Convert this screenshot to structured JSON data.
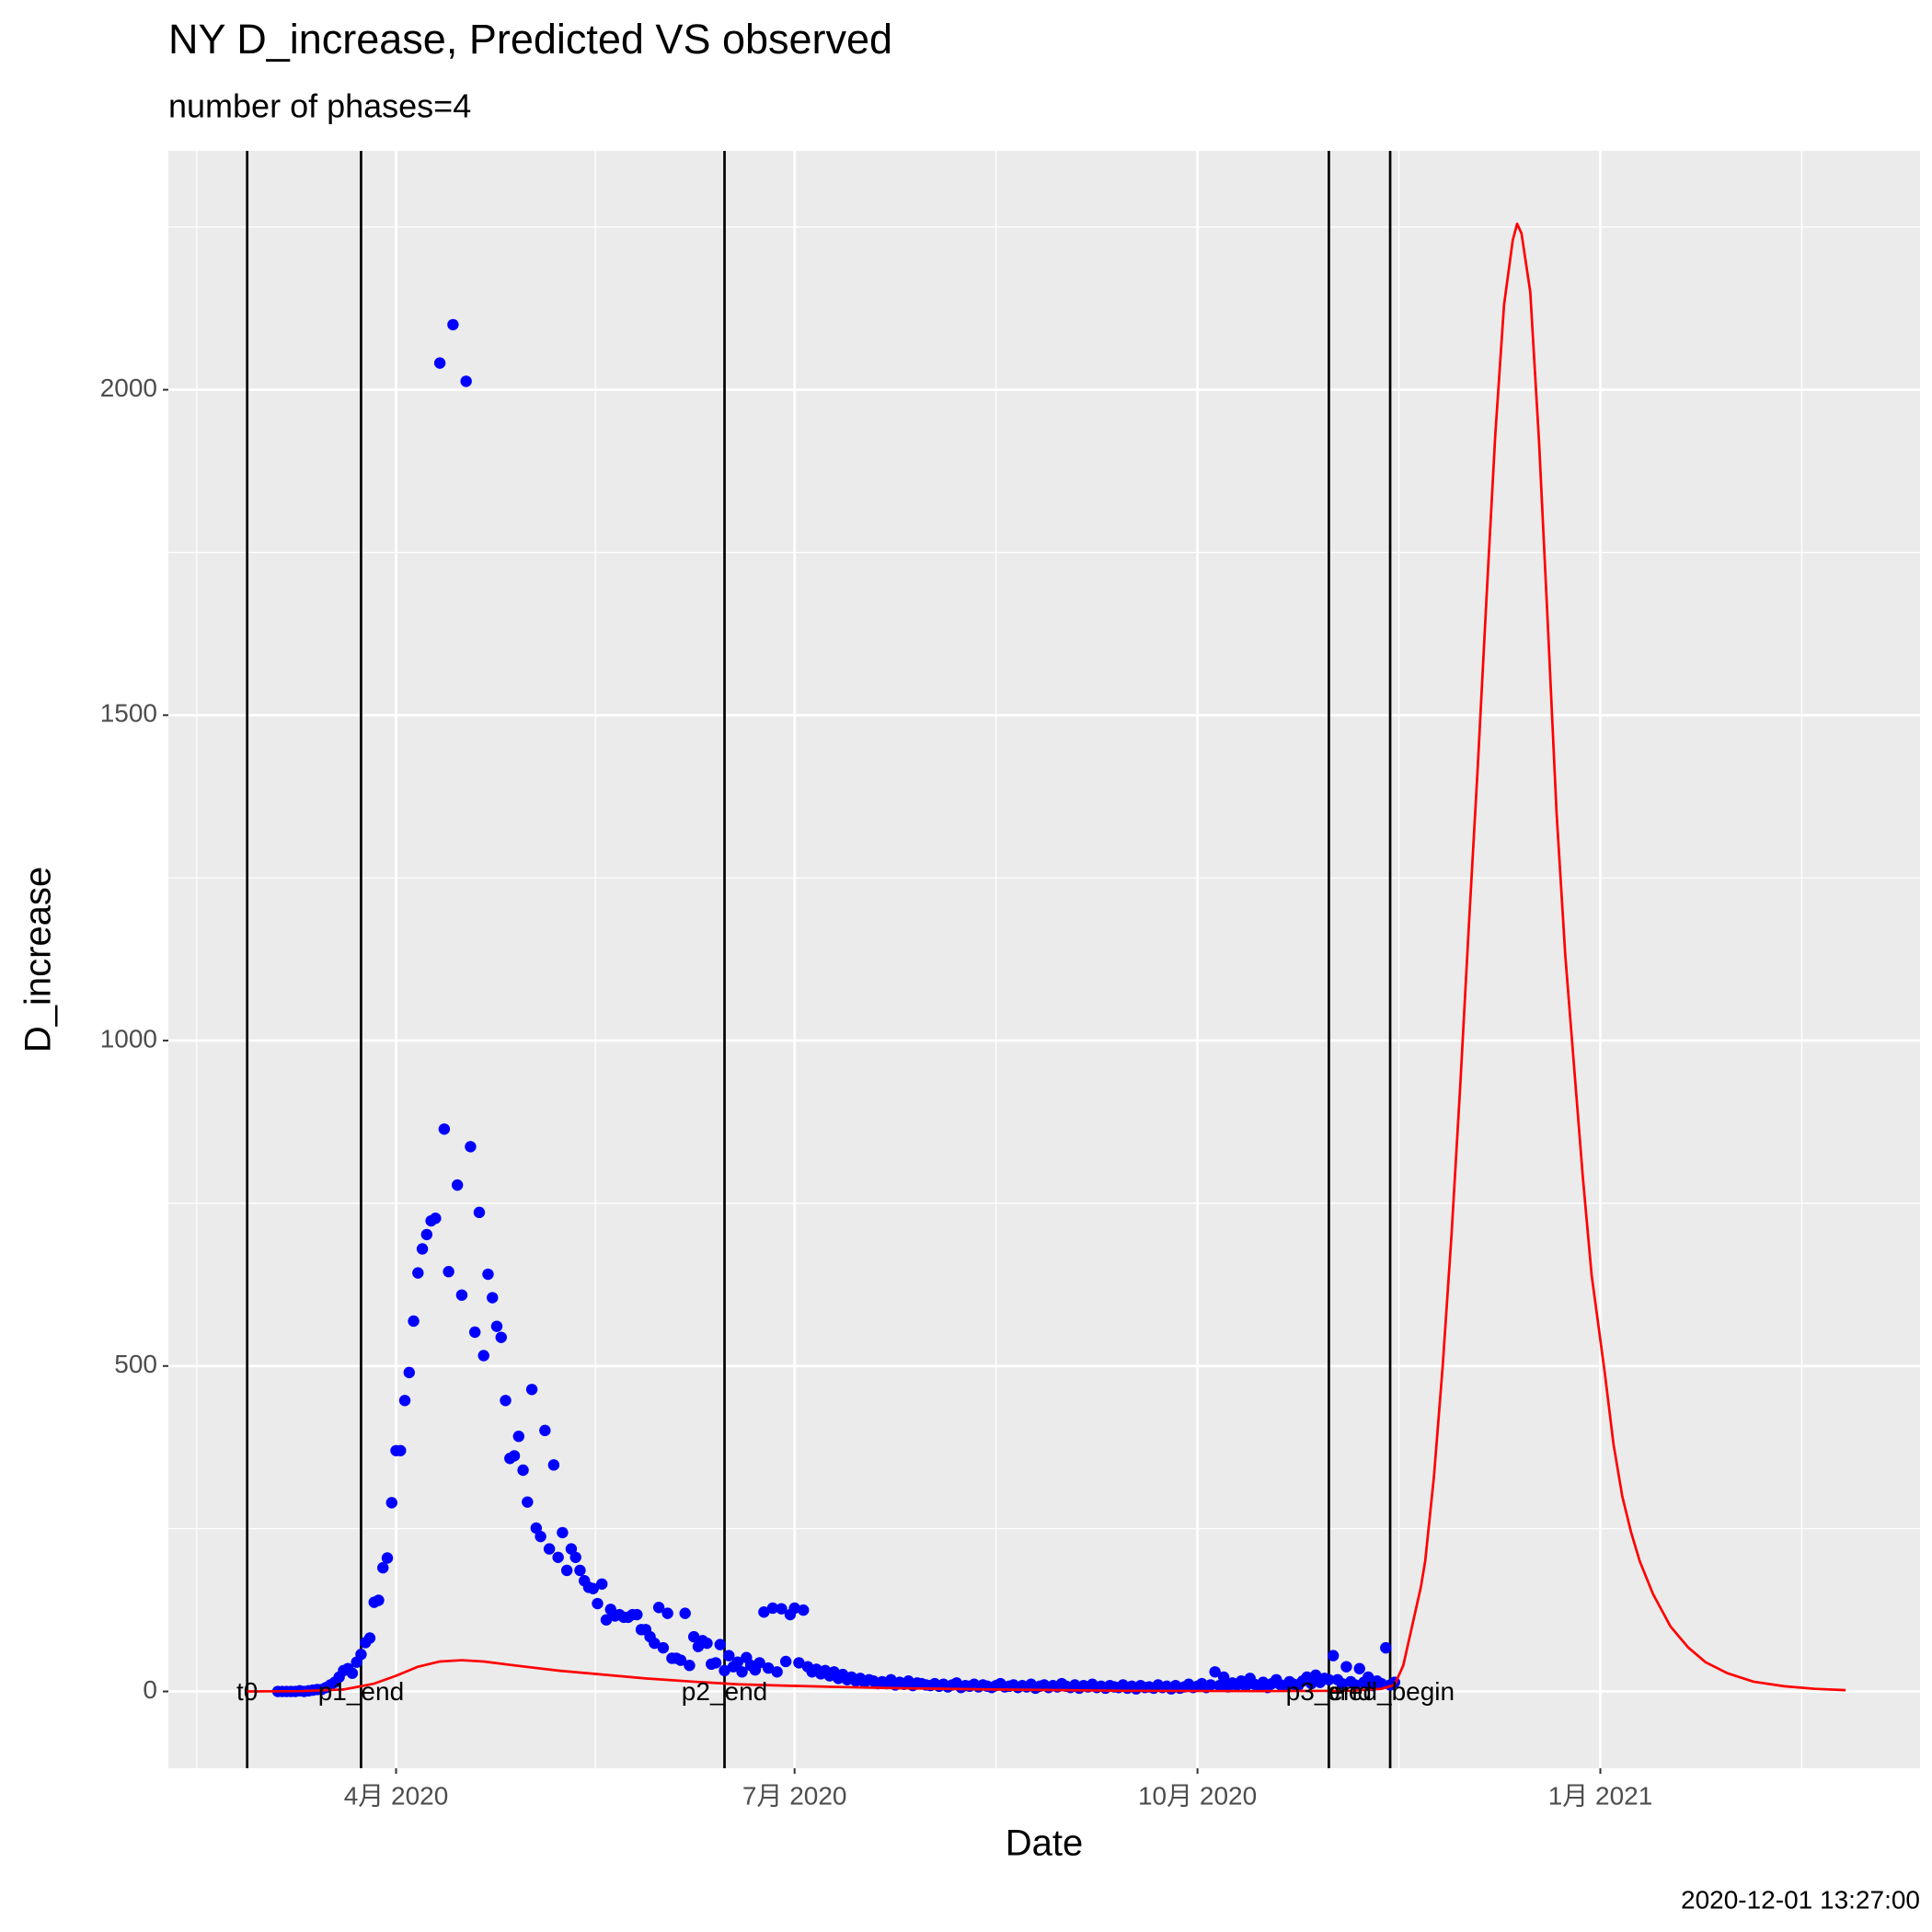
{
  "chart_data": {
    "type": "scatter",
    "title": "NY D_increase, Predicted VS observed",
    "subtitle": "number of phases=4",
    "x_label": "Date",
    "y_label": "D_increase",
    "caption": "2020-12-01 13:27:00",
    "xlim": [
      "2020-02-09",
      "2021-03-15"
    ],
    "ylim": [
      -118,
      2367
    ],
    "xticks": [
      {
        "value": "2020-04-01",
        "label": "4月 2020"
      },
      {
        "value": "2020-07-01",
        "label": "7月 2020"
      },
      {
        "value": "2020-10-01",
        "label": "10月 2020"
      },
      {
        "value": "2021-01-01",
        "label": "1月 2021"
      }
    ],
    "yticks": [
      0,
      500,
      1000,
      1500,
      2000
    ],
    "grid": true,
    "phase_line_color": "black",
    "phase_lines": [
      {
        "label": "t0",
        "x": "2020-02-27"
      },
      {
        "label": "p1_end",
        "x": "2020-03-24"
      },
      {
        "label": "p2_end",
        "x": "2020-06-15"
      },
      {
        "label": "p3_end",
        "x": "2020-10-31"
      },
      {
        "label": "pred_begin",
        "x": "2020-11-14"
      }
    ],
    "series": [
      {
        "type": "scatter",
        "color": "blue",
        "x": [
          "2020-03-05",
          "2020-03-06",
          "2020-03-07",
          "2020-03-08",
          "2020-03-09",
          "2020-03-10",
          "2020-03-11",
          "2020-03-12",
          "2020-03-13",
          "2020-03-14",
          "2020-03-15",
          "2020-03-16",
          "2020-03-17",
          "2020-03-18",
          "2020-03-19",
          "2020-03-20",
          "2020-03-21",
          "2020-03-22",
          "2020-03-23",
          "2020-03-24",
          "2020-03-25",
          "2020-03-26",
          "2020-03-27",
          "2020-03-28",
          "2020-03-29",
          "2020-03-30",
          "2020-03-31",
          "2020-04-01",
          "2020-04-02",
          "2020-04-03",
          "2020-04-04",
          "2020-04-05",
          "2020-04-06",
          "2020-04-07",
          "2020-04-08",
          "2020-04-09",
          "2020-04-10",
          "2020-04-11",
          "2020-04-12",
          "2020-04-13",
          "2020-04-14",
          "2020-04-15",
          "2020-04-16",
          "2020-04-17",
          "2020-04-18",
          "2020-04-19",
          "2020-04-20",
          "2020-04-21",
          "2020-04-22",
          "2020-04-23",
          "2020-04-24",
          "2020-04-25",
          "2020-04-26",
          "2020-04-27",
          "2020-04-28",
          "2020-04-29",
          "2020-04-30",
          "2020-05-01",
          "2020-05-02",
          "2020-05-03",
          "2020-05-04",
          "2020-05-05",
          "2020-05-06",
          "2020-05-07",
          "2020-05-08",
          "2020-05-09",
          "2020-05-10",
          "2020-05-11",
          "2020-05-12",
          "2020-05-13",
          "2020-05-14",
          "2020-05-15",
          "2020-05-16",
          "2020-05-17",
          "2020-05-18",
          "2020-05-19",
          "2020-05-20",
          "2020-05-21",
          "2020-05-22",
          "2020-05-23",
          "2020-05-24",
          "2020-05-25",
          "2020-05-26",
          "2020-05-27",
          "2020-05-28",
          "2020-05-29",
          "2020-05-30",
          "2020-05-31",
          "2020-06-01",
          "2020-06-02",
          "2020-06-03",
          "2020-06-04",
          "2020-06-05",
          "2020-06-06",
          "2020-06-07",
          "2020-06-08",
          "2020-06-09",
          "2020-06-10",
          "2020-06-11",
          "2020-06-12",
          "2020-06-13",
          "2020-06-14",
          "2020-06-15",
          "2020-06-16",
          "2020-06-17",
          "2020-06-18",
          "2020-06-19",
          "2020-06-20",
          "2020-06-21",
          "2020-06-22",
          "2020-06-23",
          "2020-06-24",
          "2020-06-25",
          "2020-06-26",
          "2020-06-27",
          "2020-06-28",
          "2020-06-29",
          "2020-06-30",
          "2020-07-01",
          "2020-07-02",
          "2020-07-03",
          "2020-07-04",
          "2020-07-05",
          "2020-07-06",
          "2020-07-07",
          "2020-07-08",
          "2020-07-09",
          "2020-07-10",
          "2020-07-11",
          "2020-07-12",
          "2020-07-13",
          "2020-07-14",
          "2020-07-15",
          "2020-07-16",
          "2020-07-17",
          "2020-07-18",
          "2020-07-19",
          "2020-07-20",
          "2020-07-21",
          "2020-07-22",
          "2020-07-23",
          "2020-07-24",
          "2020-07-25",
          "2020-07-26",
          "2020-07-27",
          "2020-07-28",
          "2020-07-29",
          "2020-07-30",
          "2020-07-31",
          "2020-08-01",
          "2020-08-02",
          "2020-08-03",
          "2020-08-04",
          "2020-08-05",
          "2020-08-06",
          "2020-08-07",
          "2020-08-08",
          "2020-08-09",
          "2020-08-10",
          "2020-08-11",
          "2020-08-12",
          "2020-08-13",
          "2020-08-14",
          "2020-08-15",
          "2020-08-16",
          "2020-08-17",
          "2020-08-18",
          "2020-08-19",
          "2020-08-20",
          "2020-08-21",
          "2020-08-22",
          "2020-08-23",
          "2020-08-24",
          "2020-08-25",
          "2020-08-26",
          "2020-08-27",
          "2020-08-28",
          "2020-08-29",
          "2020-08-30",
          "2020-08-31",
          "2020-09-01",
          "2020-09-02",
          "2020-09-03",
          "2020-09-04",
          "2020-09-05",
          "2020-09-06",
          "2020-09-07",
          "2020-09-08",
          "2020-09-09",
          "2020-09-10",
          "2020-09-11",
          "2020-09-12",
          "2020-09-13",
          "2020-09-14",
          "2020-09-15",
          "2020-09-16",
          "2020-09-17",
          "2020-09-18",
          "2020-09-19",
          "2020-09-20",
          "2020-09-21",
          "2020-09-22",
          "2020-09-23",
          "2020-09-24",
          "2020-09-25",
          "2020-09-26",
          "2020-09-27",
          "2020-09-28",
          "2020-09-29",
          "2020-09-30",
          "2020-10-01",
          "2020-10-02",
          "2020-10-03",
          "2020-10-04",
          "2020-10-05",
          "2020-10-06",
          "2020-10-07",
          "2020-10-08",
          "2020-10-09",
          "2020-10-10",
          "2020-10-11",
          "2020-10-12",
          "2020-10-13",
          "2020-10-14",
          "2020-10-15",
          "2020-10-16",
          "2020-10-17",
          "2020-10-18",
          "2020-10-19",
          "2020-10-20",
          "2020-10-21",
          "2020-10-22",
          "2020-10-23",
          "2020-10-24",
          "2020-10-25",
          "2020-10-26",
          "2020-10-27",
          "2020-10-28",
          "2020-10-29",
          "2020-10-30",
          "2020-10-31",
          "2020-11-01",
          "2020-11-02",
          "2020-11-03",
          "2020-11-04",
          "2020-11-05",
          "2020-11-06",
          "2020-11-07",
          "2020-11-08",
          "2020-11-09",
          "2020-11-10",
          "2020-11-11",
          "2020-11-12",
          "2020-11-13",
          "2020-11-14",
          "2020-11-15"
        ],
        "values": [
          0,
          0,
          0,
          0,
          0,
          1,
          0,
          1,
          2,
          3,
          3,
          6,
          10,
          14,
          22,
          32,
          35,
          28,
          45,
          57,
          75,
          82,
          137,
          140,
          190,
          205,
          290,
          370,
          370,
          447,
          490,
          569,
          643,
          680,
          702,
          723,
          727,
          2041,
          864,
          645,
          2100,
          778,
          609,
          2013,
          837,
          552,
          736,
          516,
          641,
          605,
          561,
          544,
          447,
          358,
          362,
          392,
          340,
          291,
          464,
          251,
          238,
          401,
          219,
          348,
          206,
          244,
          186,
          219,
          206,
          186,
          170,
          160,
          158,
          135,
          165,
          110,
          126,
          116,
          118,
          114,
          114,
          118,
          118,
          95,
          95,
          84,
          74,
          129,
          67,
          120,
          51,
          51,
          48,
          120,
          40,
          84,
          69,
          78,
          74,
          42,
          44,
          72,
          32,
          55,
          38,
          45,
          30,
          52,
          40,
          33,
          44,
          122,
          36,
          128,
          30,
          127,
          46,
          118,
          128,
          44,
          125,
          38,
          30,
          34,
          27,
          32,
          24,
          30,
          20,
          26,
          18,
          22,
          16,
          20,
          14,
          18,
          16,
          12,
          15,
          12,
          18,
          10,
          14,
          11,
          16,
          9,
          13,
          12,
          10,
          9,
          12,
          8,
          11,
          7,
          10,
          13,
          6,
          9,
          8,
          11,
          7,
          10,
          8,
          6,
          9,
          12,
          7,
          8,
          10,
          6,
          9,
          7,
          11,
          5,
          8,
          10,
          6,
          9,
          7,
          12,
          8,
          6,
          10,
          5,
          9,
          7,
          11,
          6,
          8,
          5,
          9,
          7,
          6,
          10,
          5,
          8,
          4,
          9,
          6,
          7,
          5,
          10,
          6,
          8,
          4,
          9,
          5,
          7,
          11,
          6,
          8,
          12,
          6,
          10,
          30,
          9,
          22,
          7,
          13,
          10,
          16,
          8,
          20,
          11,
          9,
          14,
          6,
          12,
          18,
          10,
          8,
          15,
          11,
          9,
          16,
          22,
          12,
          25,
          14,
          20,
          18,
          55,
          18,
          12,
          38,
          15,
          10,
          35,
          14,
          22,
          9,
          16,
          12,
          67,
          10,
          14
        ]
      },
      {
        "type": "line",
        "color": "red",
        "x": [
          "2020-02-27",
          "2020-03-10",
          "2020-03-20",
          "2020-03-27",
          "2020-04-01",
          "2020-04-06",
          "2020-04-11",
          "2020-04-16",
          "2020-04-21",
          "2020-04-28",
          "2020-05-08",
          "2020-05-18",
          "2020-05-28",
          "2020-06-08",
          "2020-06-18",
          "2020-06-28",
          "2020-07-10",
          "2020-07-25",
          "2020-08-15",
          "2020-09-15",
          "2020-10-15",
          "2020-11-05",
          "2020-11-12",
          "2020-11-15",
          "2020-11-17",
          "2020-11-19",
          "2020-11-21",
          "2020-11-22",
          "2020-11-24",
          "2020-11-26",
          "2020-11-28",
          "2020-11-30",
          "2020-12-02",
          "2020-12-04",
          "2020-12-06",
          "2020-12-08",
          "2020-12-10",
          "2020-12-12",
          "2020-12-13",
          "2020-12-14",
          "2020-12-16",
          "2020-12-18",
          "2020-12-20",
          "2020-12-22",
          "2020-12-24",
          "2020-12-26",
          "2020-12-28",
          "2020-12-30",
          "2021-01-02",
          "2021-01-04",
          "2021-01-06",
          "2021-01-08",
          "2021-01-10",
          "2021-01-13",
          "2021-01-17",
          "2021-01-21",
          "2021-01-25",
          "2021-01-30",
          "2021-02-05",
          "2021-02-12",
          "2021-02-19",
          "2021-02-26"
        ],
        "values": [
          0,
          0.5,
          3,
          12,
          24,
          38,
          46,
          48,
          46,
          40,
          32,
          26,
          20,
          15,
          11,
          9,
          7,
          5,
          3,
          1,
          0.5,
          1,
          4,
          10,
          40,
          100,
          160,
          200,
          330,
          500,
          700,
          930,
          1180,
          1420,
          1680,
          1930,
          2130,
          2230,
          2255,
          2240,
          2150,
          1920,
          1640,
          1350,
          1130,
          960,
          790,
          640,
          490,
          380,
          300,
          245,
          200,
          150,
          100,
          68,
          45,
          28,
          15,
          8,
          4,
          2
        ]
      }
    ]
  }
}
